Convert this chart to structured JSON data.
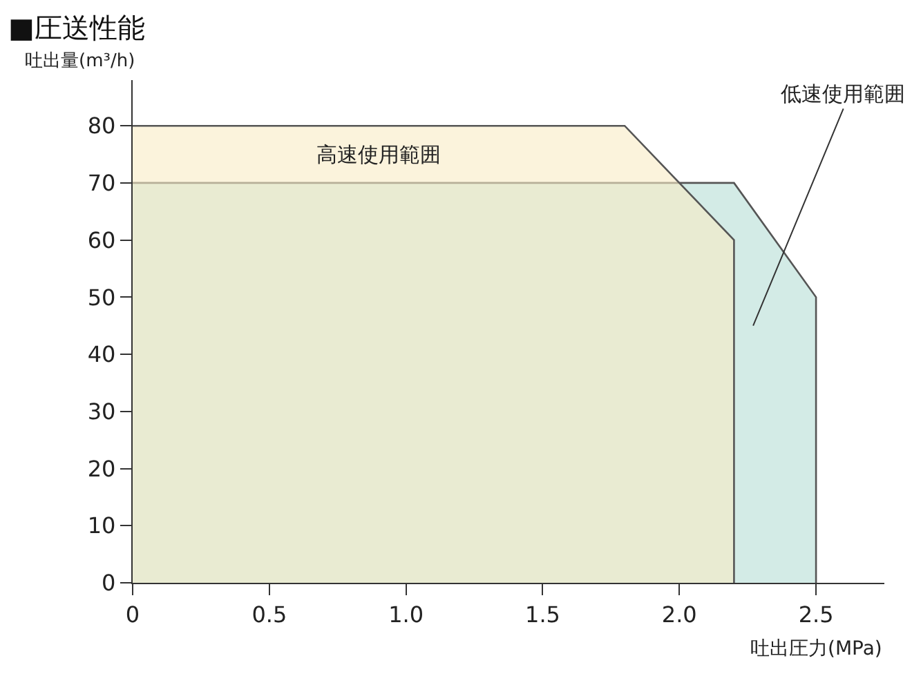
{
  "chart_data": {
    "type": "area",
    "title": "■圧送性能",
    "xlabel": "吐出圧力(MPa)",
    "ylabel": "吐出量(m³/h)",
    "series": [
      {
        "name": "低速使用範囲",
        "color": "#d3ebe6",
        "x": [
          0,
          2.2,
          2.5,
          2.5
        ],
        "values": [
          70,
          70,
          50,
          0
        ]
      },
      {
        "name": "高速使用範囲",
        "color": "#f8ebc4",
        "x": [
          0,
          1.8,
          2.2,
          2.2
        ],
        "values": [
          80,
          80,
          60,
          0
        ]
      }
    ],
    "xlim": [
      0,
      2.75
    ],
    "ylim": [
      0,
      88
    ],
    "xticks": [
      0,
      {
        "value": 0.5,
        "label": "0.5"
      },
      {
        "value": 1,
        "label": "1.0"
      },
      1.5,
      {
        "value": 2,
        "label": "2.0"
      },
      2.5
    ],
    "yticks": [
      0,
      10,
      20,
      30,
      40,
      50,
      60,
      70,
      80
    ],
    "legend": false,
    "marker": "none",
    "line_style": "solid"
  }
}
